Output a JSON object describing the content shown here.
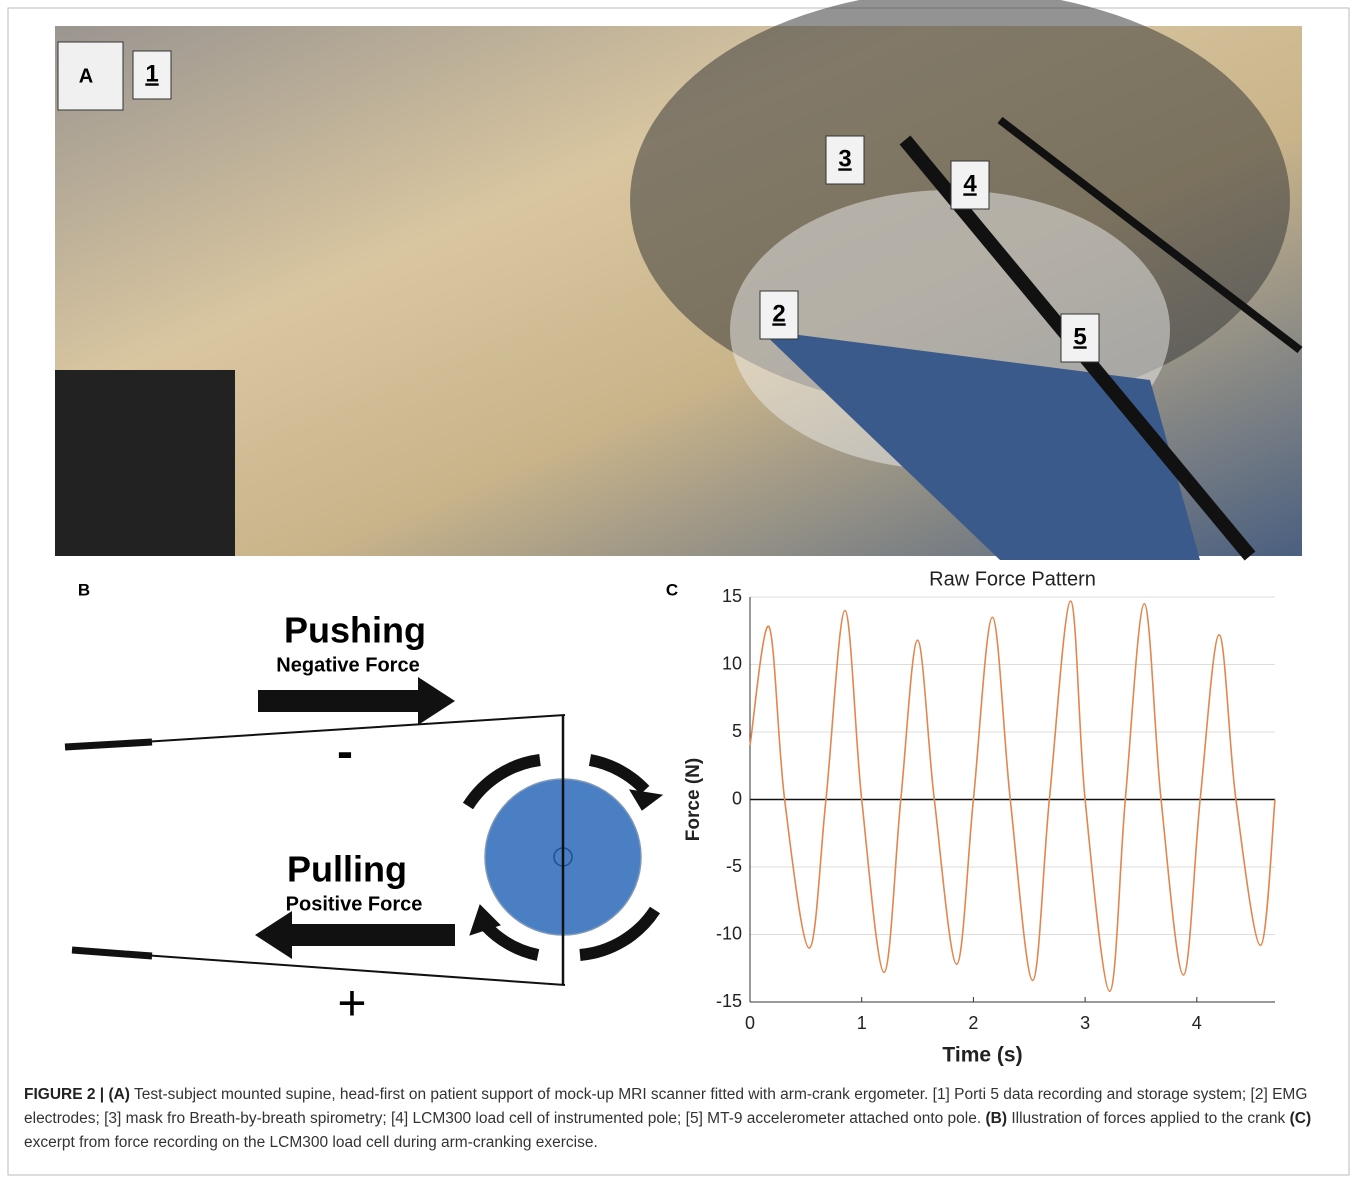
{
  "photo": {
    "panel_label": "A",
    "labels": [
      "1",
      "2",
      "3",
      "4",
      "5"
    ]
  },
  "diagram": {
    "panel_label": "B",
    "push_title": "Pushing",
    "push_subtitle": "Negative Force",
    "push_sign": "-",
    "pull_title": "Pulling",
    "pull_subtitle": "Positive Force",
    "pull_sign": "+"
  },
  "chart_panel_label": "C",
  "chart_data": {
    "type": "line",
    "title": "Raw Force Pattern",
    "x_label": "Time (s)",
    "y_label": "Force (N)",
    "x": [
      0,
      0.17,
      0.31,
      0.53,
      0.68,
      0.85,
      1.0,
      1.2,
      1.35,
      1.5,
      1.65,
      1.85,
      2.0,
      2.17,
      2.33,
      2.53,
      2.68,
      2.87,
      3.0,
      3.22,
      3.36,
      3.53,
      3.68,
      3.88,
      4.03,
      4.2,
      4.35,
      4.57,
      4.7
    ],
    "series": [
      {
        "name": "Force",
        "color": "#e0874f",
        "values": [
          4,
          12.8,
          0,
          -11,
          0,
          14,
          0,
          -12.8,
          0,
          11.8,
          0,
          -12.2,
          0,
          13.5,
          0,
          -13.4,
          0,
          14.7,
          0,
          -14.2,
          0,
          14.5,
          0,
          -13,
          0,
          12.2,
          0,
          -10.8,
          0
        ]
      }
    ],
    "xlim": [
      0,
      4.7
    ],
    "ylim": [
      -15,
      15
    ],
    "xticks": [
      0,
      1,
      2,
      3,
      4
    ],
    "yticks": [
      15,
      10,
      5,
      0,
      -5,
      -10,
      -15
    ],
    "grid": true
  },
  "caption": {
    "label": "FIGURE 2 |",
    "a_tag": "(A)",
    "a_text": " Test-subject mounted supine, head-first on patient support of mock-up MRI scanner fitted with arm-crank ergometer. [1] Porti 5 data recording and storage system; [2] EMG electrodes; [3] mask fro Breath-by-breath spirometry; [4] LCM300 load cell of instrumented pole; [5] MT-9 accelerometer attached onto pole. ",
    "b_tag": "(B)",
    "b_text": " Illustration of forces applied to the crank ",
    "c_tag": "(C)",
    "c_text": " excerpt from force recording on the LCM300 load cell during arm-cranking exercise."
  }
}
